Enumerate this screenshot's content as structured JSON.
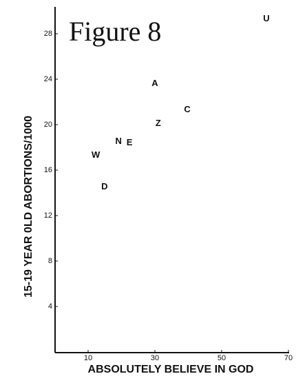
{
  "chart_data": {
    "type": "scatter",
    "title": "Figure 8",
    "x_label": "ABSOLUTELY BELIEVE IN GOD",
    "y_label": "15-19 YEAR 0LD ABORTIONS/1000",
    "point_labels": [
      "U",
      "A",
      "C",
      "Z",
      "N",
      "E",
      "W",
      "D"
    ],
    "x": [
      63.4,
      30.0,
      39.7,
      31.0,
      19.1,
      22.4,
      12.3,
      14.9
    ],
    "values": [
      29.3,
      23.6,
      21.3,
      20.1,
      18.5,
      18.4,
      17.3,
      14.5
    ],
    "color": "#111111",
    "xlim": [
      0,
      70
    ],
    "xticks": [
      10,
      30,
      50,
      70
    ],
    "ylim": [
      0,
      30
    ],
    "yticks": [
      4,
      8,
      12,
      16,
      20,
      24,
      28
    ]
  }
}
